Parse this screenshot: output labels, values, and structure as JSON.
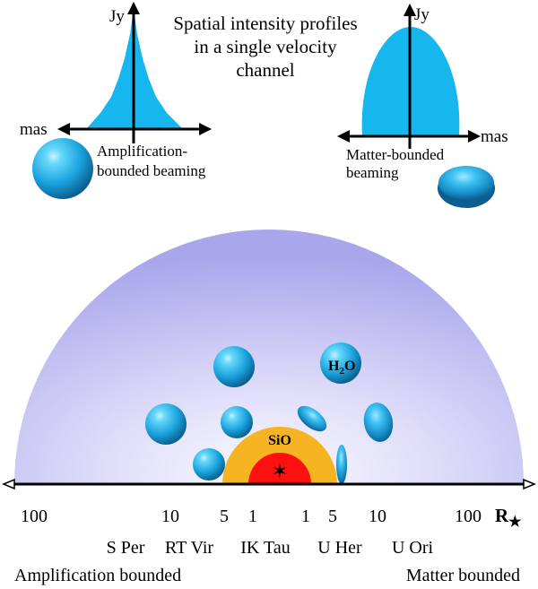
{
  "title": {
    "line1": "Spatial intensity profiles",
    "line2": "in a single velocity",
    "line3": "channel"
  },
  "left_profile": {
    "y_axis": "Jy",
    "x_axis": "mas",
    "caption_line1": "Amplification-",
    "caption_line2": "bounded beaming"
  },
  "right_profile": {
    "y_axis": "Jy",
    "x_axis": "mas",
    "caption_line1": "Matter-bounded",
    "caption_line2": "beaming"
  },
  "shell_labels": {
    "h2o_main": "H",
    "h2o_sub": "2",
    "h2o_tail": "O",
    "sio": "SiO"
  },
  "scale": {
    "left_100": "100",
    "left_10": "10",
    "left_5": "5",
    "left_1": "1",
    "right_1": "1",
    "right_5": "5",
    "right_10": "10",
    "right_100": "100",
    "unit": "R"
  },
  "stars": {
    "s_per": "S Per",
    "rt_vir": "RT Vir",
    "ik_tau": "IK Tau",
    "u_her": "U Her",
    "u_ori": "U Ori"
  },
  "extremes": {
    "left": "Amplification bounded",
    "right": "Matter bounded"
  },
  "colors": {
    "profile_fill": "#16b6ee",
    "shell_edge": "#a9a6ec",
    "sio_shell": "#f6b422",
    "star_core": "#ff1010"
  }
}
